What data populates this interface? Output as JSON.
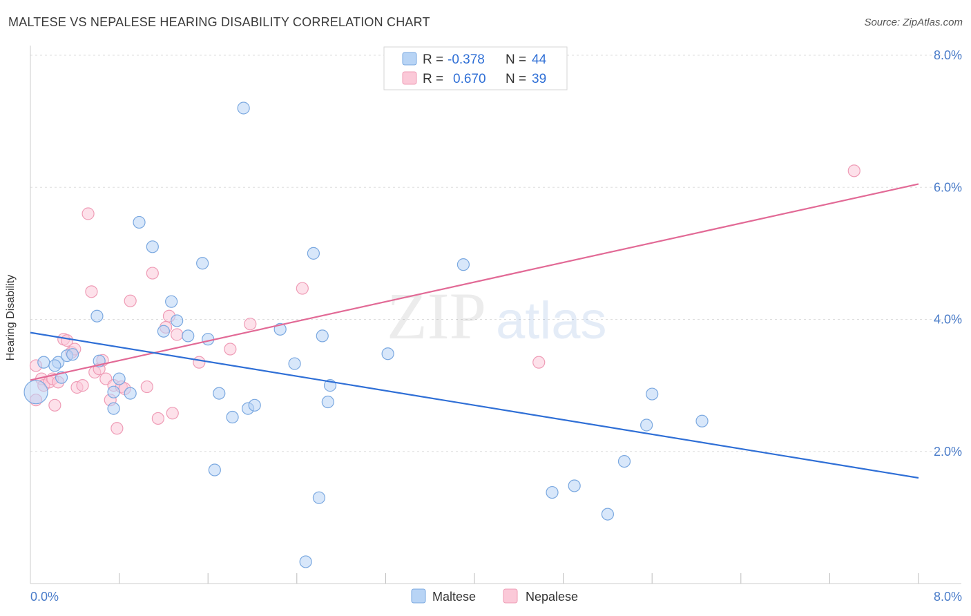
{
  "title": "MALTESE VS NEPALESE HEARING DISABILITY CORRELATION CHART",
  "source": "Source: ZipAtlas.com",
  "watermark": {
    "part1": "ZIP",
    "part2": "atlas"
  },
  "colors": {
    "maltese_fill": "#b8d4f5",
    "maltese_stroke": "#7aa8e0",
    "maltese_line": "#2f6fd6",
    "nepalese_fill": "#fbc9d8",
    "nepalese_stroke": "#ef9cb6",
    "nepalese_line": "#e26a96",
    "axis_text": "#4a7cc9",
    "grid": "#dddddd"
  },
  "legend": {
    "rows": [
      {
        "r_label": "R =",
        "r_value": "-0.378",
        "n_label": "N =",
        "n_value": "44"
      },
      {
        "r_label": "R =",
        "r_value": "0.670",
        "n_label": "N =",
        "n_value": "39"
      }
    ]
  },
  "bottom_legend": [
    "Maltese",
    "Nepalese"
  ],
  "chart_data": {
    "type": "scatter",
    "title": "MALTESE VS NEPALESE HEARING DISABILITY CORRELATION CHART",
    "xlabel": "",
    "ylabel": "Hearing Disability",
    "xlim": [
      0,
      8.0
    ],
    "ylim": [
      0,
      8.0
    ],
    "x_tick_labels": [
      "0.0%",
      "8.0%"
    ],
    "y_ticks": [
      2.0,
      4.0,
      6.0,
      8.0
    ],
    "y_tick_labels": [
      "2.0%",
      "4.0%",
      "6.0%",
      "8.0%"
    ],
    "grid": true,
    "legend_position": "top-center",
    "series": [
      {
        "name": "Maltese",
        "R": -0.378,
        "N": 44,
        "trend": {
          "x": [
            0.0,
            8.0
          ],
          "y": [
            3.8,
            1.6
          ]
        },
        "points": [
          [
            0.05,
            2.9
          ],
          [
            0.12,
            3.35
          ],
          [
            0.25,
            3.35
          ],
          [
            0.33,
            3.45
          ],
          [
            0.38,
            3.47
          ],
          [
            0.28,
            3.12
          ],
          [
            0.22,
            3.3
          ],
          [
            0.62,
            3.37
          ],
          [
            0.6,
            4.05
          ],
          [
            0.75,
            2.9
          ],
          [
            0.8,
            3.1
          ],
          [
            0.75,
            2.65
          ],
          [
            0.98,
            5.47
          ],
          [
            1.1,
            5.1
          ],
          [
            1.2,
            3.82
          ],
          [
            1.27,
            4.27
          ],
          [
            1.32,
            3.98
          ],
          [
            1.42,
            3.75
          ],
          [
            1.55,
            4.85
          ],
          [
            1.6,
            3.7
          ],
          [
            1.66,
            1.72
          ],
          [
            1.7,
            2.88
          ],
          [
            1.82,
            2.52
          ],
          [
            1.92,
            7.2
          ],
          [
            1.96,
            2.65
          ],
          [
            2.02,
            2.7
          ],
          [
            2.25,
            3.85
          ],
          [
            2.38,
            3.33
          ],
          [
            2.48,
            0.33
          ],
          [
            2.55,
            5.0
          ],
          [
            2.6,
            1.3
          ],
          [
            2.63,
            3.75
          ],
          [
            2.68,
            2.75
          ],
          [
            2.7,
            3.0
          ],
          [
            3.22,
            3.48
          ],
          [
            3.9,
            4.83
          ],
          [
            4.7,
            1.38
          ],
          [
            4.9,
            1.48
          ],
          [
            5.2,
            1.05
          ],
          [
            5.35,
            1.85
          ],
          [
            5.55,
            2.4
          ],
          [
            5.6,
            2.87
          ],
          [
            6.05,
            2.46
          ],
          [
            0.9,
            2.88
          ]
        ]
      },
      {
        "name": "Nepalese",
        "R": 0.67,
        "N": 39,
        "trend": {
          "x": [
            0.0,
            8.0
          ],
          "y": [
            3.08,
            6.05
          ]
        },
        "points": [
          [
            0.05,
            2.78
          ],
          [
            0.1,
            3.1
          ],
          [
            0.12,
            3.0
          ],
          [
            0.17,
            3.05
          ],
          [
            0.2,
            3.1
          ],
          [
            0.22,
            2.7
          ],
          [
            0.25,
            3.05
          ],
          [
            0.3,
            3.7
          ],
          [
            0.33,
            3.68
          ],
          [
            0.37,
            3.5
          ],
          [
            0.4,
            3.55
          ],
          [
            0.42,
            2.97
          ],
          [
            0.47,
            3.0
          ],
          [
            0.52,
            5.6
          ],
          [
            0.55,
            4.42
          ],
          [
            0.58,
            3.2
          ],
          [
            0.62,
            3.25
          ],
          [
            0.65,
            3.38
          ],
          [
            0.68,
            3.1
          ],
          [
            0.72,
            2.78
          ],
          [
            0.75,
            3.0
          ],
          [
            0.78,
            2.35
          ],
          [
            0.82,
            2.98
          ],
          [
            0.9,
            4.28
          ],
          [
            1.05,
            2.98
          ],
          [
            1.1,
            4.7
          ],
          [
            1.15,
            2.5
          ],
          [
            1.22,
            3.88
          ],
          [
            1.25,
            4.05
          ],
          [
            1.28,
            2.58
          ],
          [
            1.32,
            3.77
          ],
          [
            1.52,
            3.35
          ],
          [
            1.8,
            3.55
          ],
          [
            1.98,
            3.93
          ],
          [
            2.45,
            4.47
          ],
          [
            4.58,
            3.35
          ],
          [
            7.42,
            6.25
          ],
          [
            0.85,
            2.95
          ],
          [
            0.05,
            3.3
          ]
        ]
      }
    ]
  }
}
